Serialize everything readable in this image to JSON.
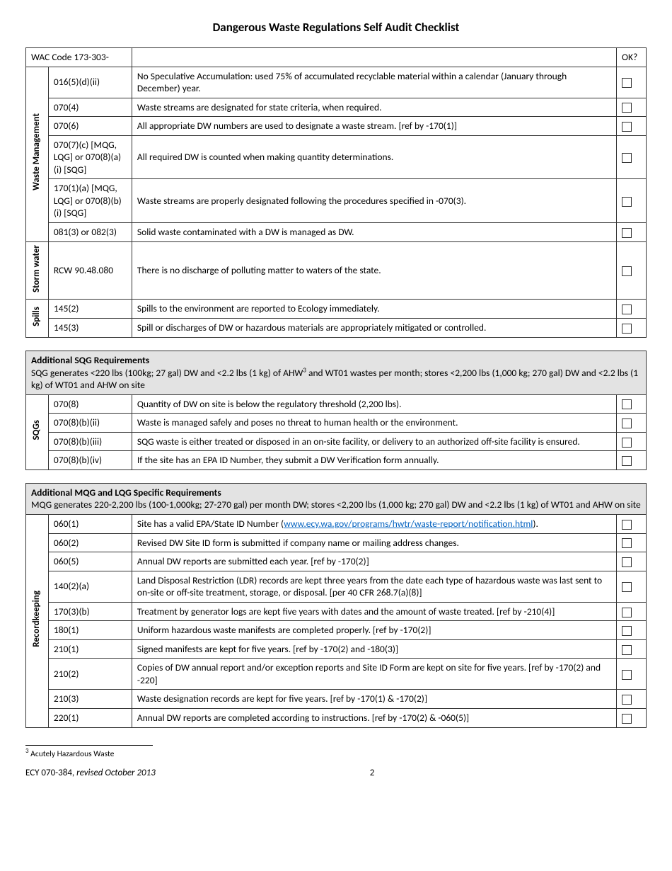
{
  "title": "Dangerous Waste Regulations Self Audit Checklist",
  "header_row": {
    "wac": "WAC Code 173-303-",
    "ok": "OK?"
  },
  "table1": {
    "groups": [
      {
        "category": "Waste Management",
        "rows": [
          {
            "code": "016(5)(d)(ii)",
            "desc": "No Speculative Accumulation: used 75% of accumulated recyclable material within a calendar (January through December) year."
          },
          {
            "code": "070(4)",
            "desc": "Waste streams are designated for state criteria, when required."
          },
          {
            "code": "070(6)",
            "desc": "All appropriate DW numbers are used to designate a waste stream. [ref by -170(1)]"
          },
          {
            "code": "070(7)(c) [MQG, LQG] or 070(8)(a)(i) [SQG]",
            "desc": "All required DW is counted when making quantity determinations."
          },
          {
            "code": "170(1)(a) [MQG, LQG] or 070(8)(b)(i) [SQG]",
            "desc": "Waste streams are properly designated following the procedures specified in -070(3)."
          },
          {
            "code": "081(3) or 082(3)",
            "desc": "Solid waste contaminated with a DW is managed as DW."
          }
        ]
      },
      {
        "category": "Storm water",
        "rows": [
          {
            "code": "RCW 90.48.080",
            "desc": "There is no discharge of polluting matter to waters of the state."
          }
        ]
      },
      {
        "category": "Spills",
        "rows": [
          {
            "code": "145(2)",
            "desc": "Spills to the environment are reported to Ecology immediately."
          },
          {
            "code": "145(3)",
            "desc": "Spill or discharges of DW or hazardous materials are appropriately mitigated or controlled."
          }
        ]
      }
    ]
  },
  "table2": {
    "section_title": "Additional SQG Requirements",
    "section_sub_pre": "SQG generates  <220 lbs (100kg; 27 gal) DW and  <2.2 lbs (1 kg) of AHW",
    "section_sub_post": " and WT01 wastes per month; stores <2,200 lbs (1,000 kg; 270 gal)  DW and <2.2 lbs (1 kg) of WT01 and AHW on site",
    "footref": "3",
    "category": "SQGs",
    "rows": [
      {
        "code": "070(8)",
        "desc": "Quantity of DW on site is below the regulatory threshold (2,200 lbs)."
      },
      {
        "code": "070(8)(b)(ii)",
        "desc": "Waste is managed safely and poses no threat to human health or the environment."
      },
      {
        "code": "070(8)(b)(iii)",
        "desc": "SQG waste is either treated or disposed in an on-site facility, or delivery to an authorized off-site facility is ensured."
      },
      {
        "code": "070(8)(b)(iv)",
        "desc": "If the site has an EPA ID Number, they submit a DW Verification form annually."
      }
    ]
  },
  "table3": {
    "section_title": "Additional MQG and LQG Specific Requirements",
    "section_sub": "MQG generates 220-2,200 lbs (100-1,000kg; 27-270 gal) per month DW; stores <2,200 lbs (1,000 kg; 270 gal) DW and <2.2 lbs (1 kg) of WT01 and AHW on site",
    "category": "Recordkeeping",
    "rows": [
      {
        "code": "060(1)",
        "desc_pre": "Site has a valid EPA/State ID Number (",
        "link": "www.ecy.wa.gov/programs/hwtr/waste-report/notification.html",
        "desc_post": ")."
      },
      {
        "code": "060(2)",
        "desc": "Revised DW Site ID form is submitted if company name or mailing address changes."
      },
      {
        "code": "060(5)",
        "desc": "Annual DW reports are submitted each year. [ref by -170(2)]"
      },
      {
        "code": "140(2)(a)",
        "desc": "Land Disposal Restriction (LDR) records are kept three years from the date each type of hazardous waste was last sent to on-site or off-site treatment, storage, or disposal. [per 40 CFR 268.7(a)(8)]"
      },
      {
        "code": "170(3)(b)",
        "desc": "Treatment by generator logs are kept five years with dates and the amount of waste treated. [ref by -210(4)]"
      },
      {
        "code": "180(1)",
        "desc": "Uniform hazardous waste manifests are completed properly. [ref by -170(2)]"
      },
      {
        "code": "210(1)",
        "desc": "Signed manifests are kept for five years. [ref by -170(2) and -180(3)]"
      },
      {
        "code": "210(2)",
        "desc": "Copies of DW annual report and/or exception reports and Site ID Form are kept on site for five years. [ref by -170(2) and -220]"
      },
      {
        "code": "210(3)",
        "desc": "Waste designation records are kept for five years. [ref by -170(1) & -170(2)]"
      },
      {
        "code": "220(1)",
        "desc": "Annual DW reports are completed according to instructions. [ref by -170(2) & -060(5)]"
      }
    ]
  },
  "footnote": {
    "num": "3",
    "text": "Acutely Hazardous Waste"
  },
  "footer": {
    "doc": "ECY 070-384, ",
    "rev": "revised October 2013",
    "page": "2"
  }
}
